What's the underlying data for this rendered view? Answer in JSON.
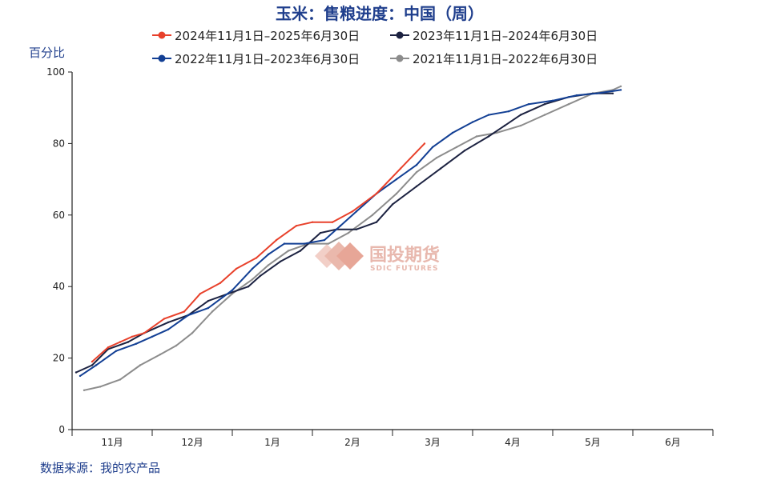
{
  "chart_data": {
    "type": "line",
    "title": "玉米：售粮进度：中国（周）",
    "ylabel": "百分比",
    "ylim": [
      0,
      100
    ],
    "yticks": [
      0,
      20,
      40,
      60,
      80,
      100
    ],
    "xlim": [
      0,
      8
    ],
    "month_labels": [
      "11月",
      "12月",
      "1月",
      "2月",
      "3月",
      "4月",
      "5月",
      "6月"
    ],
    "grid": false,
    "legend_position": "top",
    "source": "数据来源：我的农产品",
    "watermark": {
      "name": "国投期货",
      "sub": "SDIC FUTURES"
    },
    "series": [
      {
        "name": "2024年11月1日–2025年6月30日",
        "color": "#e8412b",
        "x": [
          0.25,
          0.45,
          0.6,
          0.75,
          0.9,
          1.15,
          1.4,
          1.6,
          1.85,
          2.05,
          2.3,
          2.55,
          2.8,
          3.0,
          3.25,
          3.5,
          3.8,
          4.1,
          4.4
        ],
        "y": [
          19,
          23,
          24.5,
          26,
          27,
          31,
          33,
          38,
          41,
          45,
          48,
          53,
          57,
          58,
          58,
          61,
          66,
          73,
          80
        ]
      },
      {
        "name": "2023年11月1日–2024年6月30日",
        "color": "#1c2241",
        "x": [
          0.05,
          0.25,
          0.45,
          0.7,
          0.9,
          1.2,
          1.45,
          1.7,
          1.95,
          2.2,
          2.35,
          2.6,
          2.85,
          3.1,
          3.3,
          3.55,
          3.8,
          4.0,
          4.3,
          4.6,
          4.9,
          5.2,
          5.4,
          5.6,
          5.9,
          6.2,
          6.5,
          6.75
        ],
        "y": [
          16,
          18,
          22.5,
          24.5,
          27,
          30,
          32,
          36,
          38,
          40,
          43,
          47,
          50,
          55,
          56,
          56,
          58,
          63,
          68,
          73,
          78,
          82,
          85,
          88,
          91,
          93,
          94,
          94
        ]
      },
      {
        "name": "2022年11月1日–2023年6月30日",
        "color": "#123f94",
        "x": [
          0.1,
          0.3,
          0.55,
          0.8,
          1.0,
          1.2,
          1.45,
          1.7,
          2.0,
          2.25,
          2.45,
          2.65,
          2.9,
          3.15,
          3.35,
          3.55,
          3.8,
          4.05,
          4.3,
          4.5,
          4.75,
          5.0,
          5.2,
          5.45,
          5.7,
          6.0,
          6.3,
          6.55,
          6.85
        ],
        "y": [
          15,
          18,
          22,
          24,
          26,
          28,
          32,
          34,
          39,
          45,
          49,
          52,
          52,
          53,
          57,
          61,
          66,
          70,
          74,
          79,
          83,
          86,
          88,
          89,
          91,
          92,
          93.5,
          94,
          95
        ]
      },
      {
        "name": "2021年11月1日–2022年6月30日",
        "color": "#8c8c8c",
        "x": [
          0.15,
          0.35,
          0.6,
          0.85,
          1.1,
          1.3,
          1.5,
          1.75,
          2.0,
          2.25,
          2.45,
          2.7,
          2.95,
          3.2,
          3.45,
          3.75,
          4.05,
          4.3,
          4.55,
          4.8,
          5.05,
          5.3,
          5.6,
          5.9,
          6.2,
          6.5,
          6.75,
          6.85
        ],
        "y": [
          11,
          12,
          14,
          18,
          21,
          23.5,
          27,
          33,
          38,
          42,
          46,
          50,
          52,
          52,
          55,
          60,
          66,
          72,
          76,
          79,
          82,
          83,
          85,
          88,
          91,
          94,
          95,
          96
        ]
      }
    ]
  }
}
